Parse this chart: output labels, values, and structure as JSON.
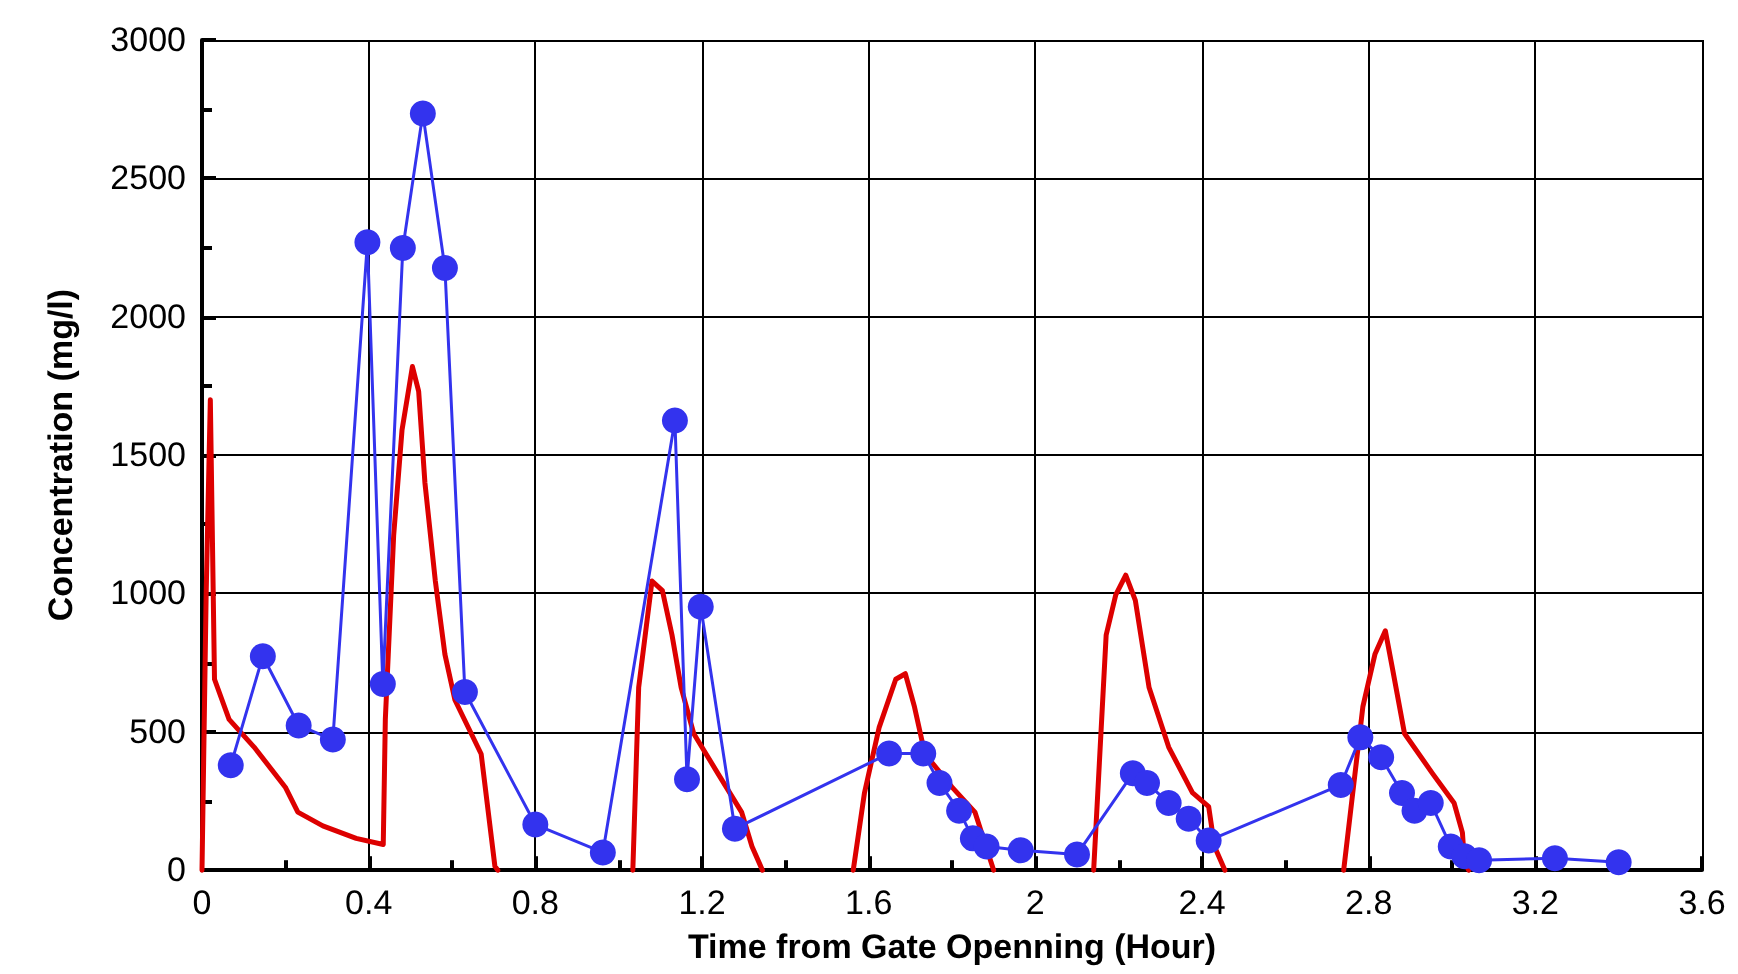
{
  "chart_data": {
    "type": "line",
    "xlabel": "Time from Gate Openning (Hour)",
    "ylabel": "Concentration (mg/l)",
    "xlim": [
      0,
      3.6
    ],
    "xticks": [
      0,
      0.4,
      0.8,
      1.2,
      1.6,
      2,
      2.4,
      2.8,
      3.2,
      3.6
    ],
    "ylim": [
      0,
      3000
    ],
    "yticks": [
      0,
      500,
      1000,
      1500,
      2000,
      2500,
      3000
    ],
    "grid": true,
    "series": [
      {
        "color": "#dd0000",
        "marker": "none",
        "line_style": "solid",
        "x": [
          0,
          0.01,
          0.02,
          0.03,
          0.065,
          0.125,
          0.2,
          0.23,
          0.29,
          0.37,
          0.435,
          0.44,
          0.46,
          0.48,
          0.505,
          0.52,
          0.535,
          0.56,
          0.583,
          0.607,
          0.67,
          0.703,
          0.71,
          0.8,
          1.034,
          1.048,
          1.08,
          1.105,
          1.128,
          1.15,
          1.18,
          1.238,
          1.295,
          1.32,
          1.345,
          1.45,
          1.563,
          1.59,
          1.625,
          1.665,
          1.688,
          1.71,
          1.735,
          1.8,
          1.855,
          1.9,
          2.0,
          2.14,
          2.17,
          2.193,
          2.217,
          2.24,
          2.273,
          2.32,
          2.377,
          2.416,
          2.43,
          2.455,
          2.6,
          2.74,
          2.786,
          2.815,
          2.84,
          2.857,
          2.886,
          2.953,
          3.005,
          3.025,
          3.03,
          3.04
        ],
        "values": [
          0,
          1000,
          1700,
          690,
          545,
          445,
          300,
          210,
          160,
          115,
          93,
          545,
          1210,
          1590,
          1820,
          1730,
          1400,
          1045,
          780,
          615,
          420,
          14,
          0,
          null,
          0,
          660,
          1045,
          1010,
          850,
          660,
          494,
          350,
          210,
          86,
          0,
          null,
          0,
          280,
          515,
          690,
          710,
          590,
          420,
          300,
          210,
          0,
          null,
          0,
          850,
          995,
          1066,
          975,
          660,
          445,
          280,
          230,
          86,
          0,
          null,
          0,
          590,
          780,
          865,
          730,
          494,
          350,
          243,
          136,
          30,
          0
        ]
      },
      {
        "color": "#3333ee",
        "marker": "circle",
        "line_style": "solid",
        "x": [
          0.069,
          0.146,
          0.232,
          0.314,
          0.397,
          0.434,
          0.482,
          0.53,
          0.583,
          0.631,
          0.8,
          0.962,
          1.135,
          1.164,
          1.197,
          1.279,
          1.649,
          1.731,
          1.77,
          1.817,
          1.85,
          1.883,
          1.965,
          2.1,
          2.234,
          2.268,
          2.32,
          2.368,
          2.416,
          2.733,
          2.78,
          2.83,
          2.88,
          2.91,
          2.949,
          2.997,
          3.03,
          3.065,
          3.247,
          3.4
        ],
        "values": [
          379,
          773,
          523,
          472,
          2269,
          673,
          2248,
          2734,
          2176,
          644,
          165,
          64,
          1625,
          329,
          952,
          150,
          422,
          422,
          315,
          215,
          115,
          86,
          72,
          57,
          350,
          315,
          243,
          186,
          107,
          308,
          480,
          408,
          279,
          215,
          243,
          86,
          50,
          36,
          43,
          29
        ]
      }
    ]
  }
}
